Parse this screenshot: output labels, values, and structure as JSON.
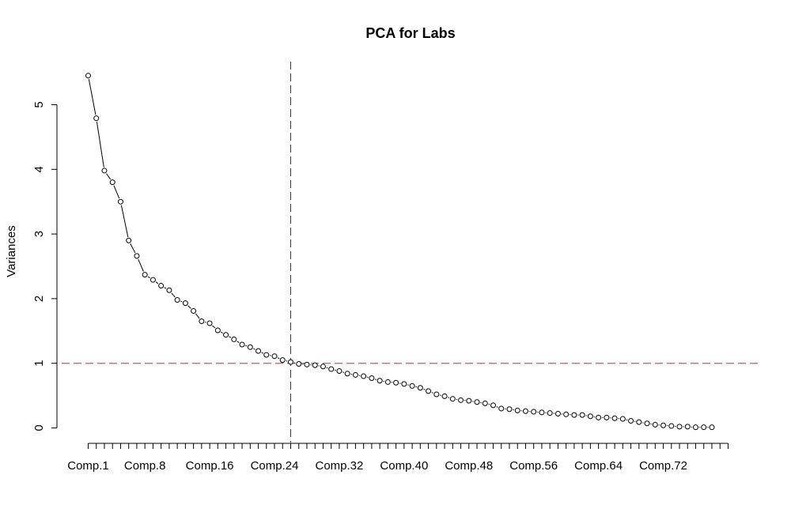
{
  "chart_data": {
    "type": "line",
    "title": "PCA for Labs",
    "xlabel": "",
    "ylabel": "Variances",
    "ylim": [
      0,
      5.5
    ],
    "y_ticks": [
      0,
      1,
      2,
      3,
      4,
      5
    ],
    "x_labeled_ticks": [
      "Comp.1",
      "Comp.8",
      "Comp.16",
      "Comp.24",
      "Comp.32",
      "Comp.40",
      "Comp.48",
      "Comp.56",
      "Comp.64",
      "Comp.72"
    ],
    "x_labeled_positions": [
      1,
      8,
      16,
      24,
      32,
      40,
      48,
      56,
      64,
      72
    ],
    "n_components": 78,
    "x_tick_count": 80,
    "hline": {
      "y": 1,
      "color": "#e0202a",
      "style": "dashed"
    },
    "vline": {
      "x": 26,
      "color": "#2b2b9b",
      "style": "dashed"
    },
    "series": [
      {
        "values": [
          5.45,
          4.79,
          3.98,
          3.8,
          3.5,
          2.9,
          2.66,
          2.37,
          2.29,
          2.2,
          2.13,
          1.98,
          1.93,
          1.81,
          1.65,
          1.62,
          1.51,
          1.44,
          1.37,
          1.29,
          1.25,
          1.19,
          1.13,
          1.11,
          1.05,
          1.02,
          0.99,
          0.98,
          0.97,
          0.95,
          0.91,
          0.88,
          0.84,
          0.82,
          0.8,
          0.77,
          0.73,
          0.71,
          0.7,
          0.68,
          0.65,
          0.62,
          0.57,
          0.52,
          0.49,
          0.45,
          0.43,
          0.42,
          0.4,
          0.38,
          0.35,
          0.3,
          0.29,
          0.27,
          0.26,
          0.25,
          0.24,
          0.23,
          0.22,
          0.21,
          0.2,
          0.2,
          0.18,
          0.16,
          0.16,
          0.15,
          0.14,
          0.11,
          0.09,
          0.07,
          0.05,
          0.04,
          0.03,
          0.02,
          0.02,
          0.01,
          0.01,
          0.01
        ]
      }
    ]
  }
}
